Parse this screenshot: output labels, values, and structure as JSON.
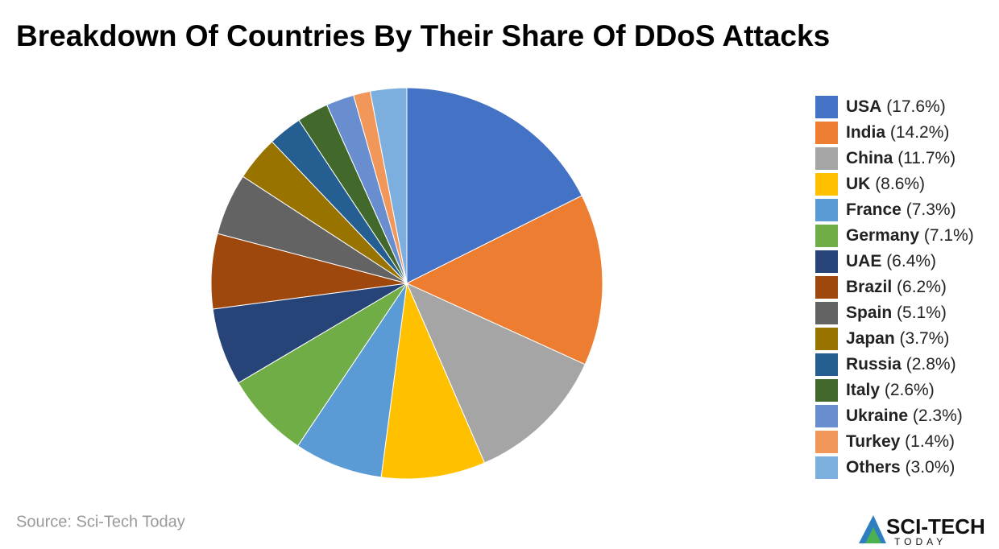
{
  "chart_data": {
    "type": "pie",
    "title": "Breakdown Of Countries By Their Share Of DDoS Attacks",
    "categories": [
      "USA",
      "India",
      "China",
      "UK",
      "France",
      "Germany",
      "UAE",
      "Brazil",
      "Spain",
      "Japan",
      "Russia",
      "Italy",
      "Ukraine",
      "Turkey",
      "Others"
    ],
    "values": [
      17.6,
      14.2,
      11.7,
      8.6,
      7.3,
      7.1,
      6.4,
      6.2,
      5.1,
      3.7,
      2.8,
      2.6,
      2.3,
      1.4,
      3.0
    ],
    "value_labels": [
      "(17.6%)",
      "(14.2%)",
      "(11.7%)",
      "(8.6%)",
      "(7.3%)",
      "(7.1%)",
      "(6.4%)",
      "(6.2%)",
      "(5.1%)",
      "(3.7%)",
      "(2.8%)",
      "(2.6%)",
      "(2.3%)",
      "(1.4%)",
      "(3.0%)"
    ],
    "colors": [
      "#4472c4",
      "#ed7d31",
      "#a5a5a5",
      "#ffc000",
      "#5b9bd5",
      "#70ad47",
      "#264478",
      "#9e480e",
      "#636363",
      "#997300",
      "#255e91",
      "#43682b",
      "#698ed0",
      "#f1975a",
      "#7cafdd"
    ],
    "legend": "right"
  },
  "footer": {
    "source": "Source: Sci-Tech Today",
    "logo_title": "SCI-TECH",
    "logo_subtitle": "TODAY"
  }
}
